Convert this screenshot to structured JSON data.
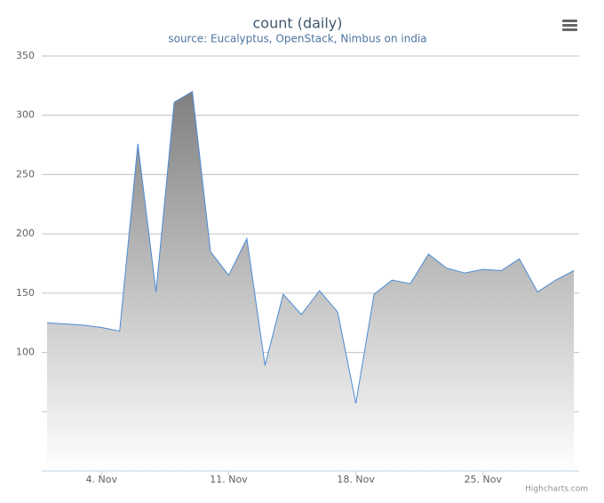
{
  "chart_data": {
    "type": "area",
    "title": "count (daily)",
    "subtitle": "source: Eucalyptus, OpenStack, Nimbus on india",
    "credits": "Highcharts.com",
    "x": [
      1,
      2,
      3,
      4,
      5,
      6,
      7,
      8,
      9,
      10,
      11,
      12,
      13,
      14,
      15,
      16,
      17,
      18,
      19,
      20,
      21,
      22,
      23,
      24,
      25,
      26,
      27,
      28,
      29,
      30
    ],
    "series": [
      {
        "color": "#4a8bd4",
        "values": [
          125,
          124,
          123,
          121,
          118,
          276,
          151,
          311,
          320,
          185,
          165,
          196,
          89,
          149,
          132,
          152,
          134,
          57,
          149,
          161,
          158,
          183,
          171,
          167,
          170,
          169,
          179,
          151,
          161,
          169
        ]
      }
    ],
    "xlim": [
      0.71,
      30.29
    ],
    "xticks": [
      {
        "value": 4,
        "label": "4. Nov"
      },
      {
        "value": 11,
        "label": "11. Nov"
      },
      {
        "value": 18,
        "label": "18. Nov"
      },
      {
        "value": 25,
        "label": "25. Nov"
      }
    ],
    "ylim": [
      0,
      350
    ],
    "yticks": [
      {
        "value": 50,
        "label": null
      },
      100,
      150,
      200,
      250,
      300,
      350
    ],
    "grid": true
  }
}
